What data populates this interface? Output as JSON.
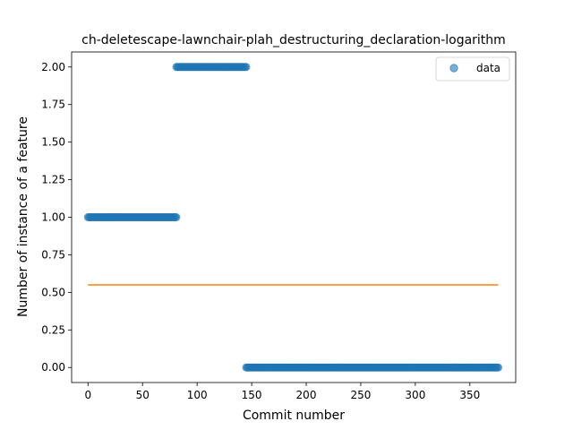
{
  "chart_data": {
    "type": "scatter",
    "title": "ch-deletescape-lawnchair-plah_destructuring_declaration-logarithm",
    "xlabel": "Commit number",
    "ylabel": "Number of instance of a feature",
    "xlim": [
      -15,
      392
    ],
    "ylim": [
      -0.1,
      2.1
    ],
    "xticks": [
      0,
      50,
      100,
      150,
      200,
      250,
      300,
      350
    ],
    "xtick_labels": [
      "0",
      "50",
      "100",
      "150",
      "200",
      "250",
      "300",
      "350"
    ],
    "yticks": [
      0.0,
      0.25,
      0.5,
      0.75,
      1.0,
      1.25,
      1.5,
      1.75,
      2.0
    ],
    "ytick_labels": [
      "0.00",
      "0.25",
      "0.50",
      "0.75",
      "1.00",
      "1.25",
      "1.50",
      "1.75",
      "2.00"
    ],
    "grid": false,
    "legend_position": "top-right",
    "series": [
      {
        "name": "data",
        "kind": "scatter",
        "color": "#1f77b4",
        "segments": [
          {
            "x_start": 0,
            "x_end": 81,
            "y": 1
          },
          {
            "x_start": 81,
            "x_end": 145,
            "y": 2
          },
          {
            "x_start": 145,
            "x_end": 376,
            "y": 0
          }
        ]
      },
      {
        "kind": "line",
        "color": "#ff7f0e",
        "x": [
          0,
          376
        ],
        "y": [
          0.55,
          0.55
        ]
      }
    ]
  }
}
